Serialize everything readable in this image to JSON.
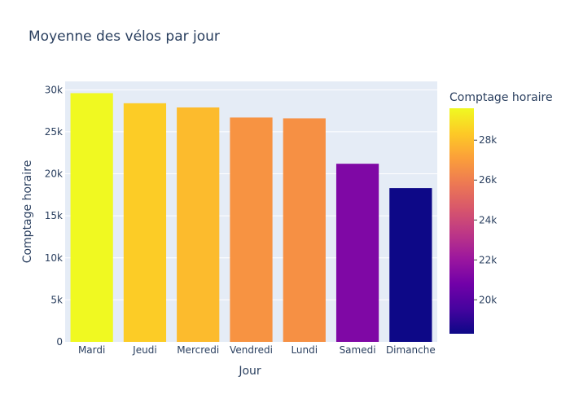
{
  "chart_data": {
    "type": "bar",
    "title": "Moyenne des vélos par jour",
    "xlabel": "Jour",
    "ylabel": "Comptage horaire",
    "categories": [
      "Mardi",
      "Jeudi",
      "Mercredi",
      "Vendredi",
      "Lundi",
      "Samedi",
      "Dimanche"
    ],
    "values": [
      29600,
      28400,
      27900,
      26700,
      26600,
      21200,
      18300
    ],
    "ylim": [
      0,
      31000
    ],
    "yticks": [
      0,
      5000,
      10000,
      15000,
      20000,
      25000,
      30000
    ],
    "ytick_labels": [
      "0",
      "5k",
      "10k",
      "15k",
      "20k",
      "25k",
      "30k"
    ],
    "grid": true,
    "colorbar": {
      "title": "Comptage horaire",
      "range": [
        18300,
        29600
      ],
      "ticks": [
        20000,
        22000,
        24000,
        26000,
        28000
      ],
      "tick_labels": [
        "20k",
        "22k",
        "24k",
        "26k",
        "28k"
      ],
      "colorscale": [
        "#0d0887",
        "#46039f",
        "#7201a8",
        "#9c179e",
        "#bd3786",
        "#d8576b",
        "#ed7953",
        "#fb9f3a",
        "#fdca26",
        "#f0f921"
      ]
    },
    "colors": {
      "plot_background": "#e5ecf6",
      "text": "#2a3f5f"
    }
  }
}
